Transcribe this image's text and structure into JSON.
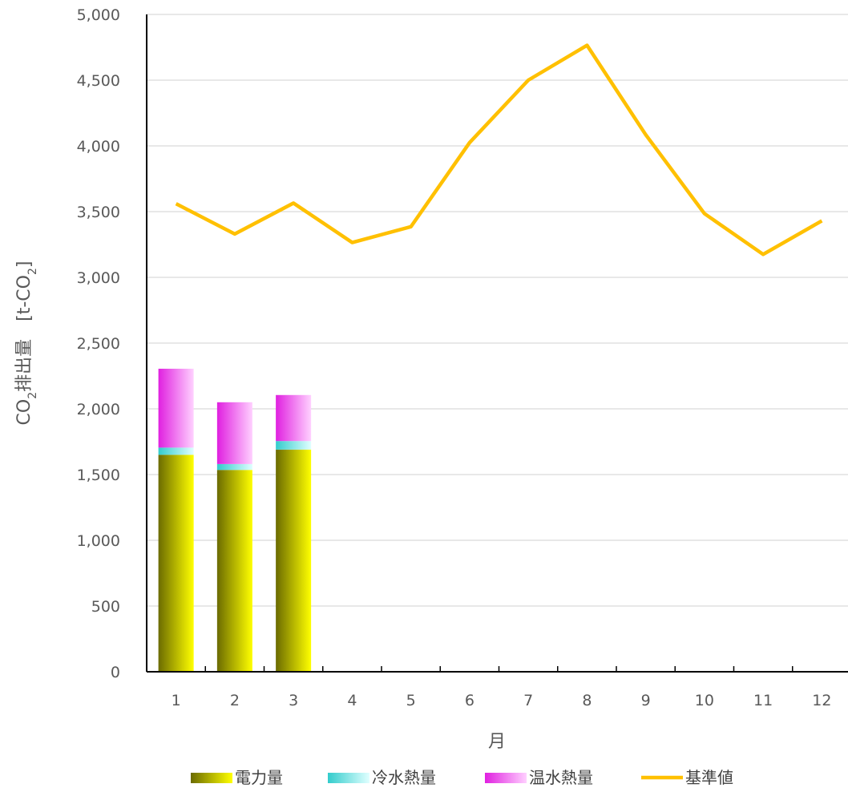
{
  "chart_data": {
    "type": "bar",
    "stacked": true,
    "categories": [
      "1",
      "2",
      "3",
      "4",
      "5",
      "6",
      "7",
      "8",
      "9",
      "10",
      "11",
      "12"
    ],
    "xlabel": "月",
    "ylabel": {
      "co": "CO",
      "sub1": "2",
      "text": "排出量　[t-CO",
      "sub2": "2",
      "close": "]"
    },
    "ylim": [
      0,
      5000
    ],
    "yticks": [
      0,
      500,
      1000,
      1500,
      2000,
      2500,
      3000,
      3500,
      4000,
      4500,
      5000
    ],
    "ytick_labels": [
      "0",
      "500",
      "1,000",
      "1,500",
      "2,000",
      "2,500",
      "3,000",
      "3,500",
      "4,000",
      "4,500",
      "5,000"
    ],
    "grid": true,
    "legend_position": "bottom",
    "series": [
      {
        "name": "電力量",
        "type": "bar",
        "values": [
          1650,
          1535,
          1690,
          null,
          null,
          null,
          null,
          null,
          null,
          null,
          null,
          null
        ],
        "color_dark": "#6b6b00",
        "color_light": "#ffff00"
      },
      {
        "name": "冷水熱量",
        "type": "bar",
        "values": [
          55,
          45,
          65,
          null,
          null,
          null,
          null,
          null,
          null,
          null,
          null,
          null
        ],
        "color_dark": "#33cccc",
        "color_light": "#e0ffff"
      },
      {
        "name": "温水熱量",
        "type": "bar",
        "values": [
          600,
          470,
          350,
          null,
          null,
          null,
          null,
          null,
          null,
          null,
          null,
          null
        ],
        "color_dark": "#e020e0",
        "color_light": "#ffd0ff"
      },
      {
        "name": "基準値",
        "type": "line",
        "values": [
          3560,
          3330,
          3565,
          3265,
          3385,
          4025,
          4500,
          4765,
          4085,
          3485,
          3175,
          3430
        ],
        "color": "#ffc000"
      }
    ]
  }
}
